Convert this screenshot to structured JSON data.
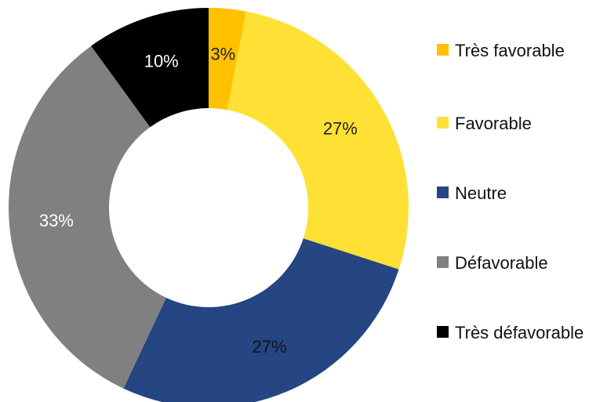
{
  "chart_data": {
    "type": "donut",
    "categories": [
      "Très favorable",
      "Favorable",
      "Neutre",
      "Défavorable",
      "Très défavorable"
    ],
    "values": [
      3,
      27,
      27,
      33,
      10
    ],
    "value_labels": [
      "3%",
      "27%",
      "27%",
      "33%",
      "10%"
    ],
    "colors": [
      "#ffc000",
      "#ffe135",
      "#254583",
      "#808080",
      "#000000"
    ],
    "label_colors": [
      "#222222",
      "#222222",
      "#111111",
      "#ffffff",
      "#ffffff"
    ],
    "legend": "right"
  }
}
